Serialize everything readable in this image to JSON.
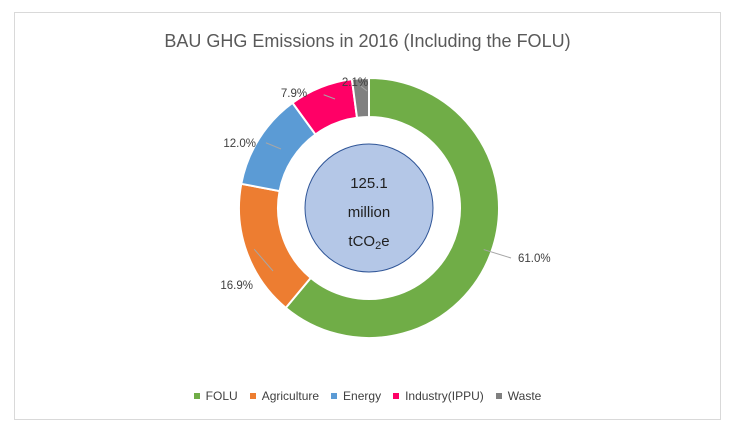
{
  "chart_data": {
    "type": "pie",
    "variant": "donut",
    "title": "BAU GHG Emissions in 2016 (Including the FOLU)",
    "center_label": {
      "value": "125.1",
      "unit_line1": "million",
      "unit_prefix": "tCO",
      "unit_sub": "2",
      "unit_suffix": "e"
    },
    "slices": [
      {
        "name": "FOLU",
        "value": 61.0,
        "label": "61.0%",
        "color": "#70ad47"
      },
      {
        "name": "Agriculture",
        "value": 16.9,
        "label": "16.9%",
        "color": "#ed7d31"
      },
      {
        "name": "Energy",
        "value": 12.0,
        "label": "12.0%",
        "color": "#5b9bd5"
      },
      {
        "name": "Industry(IPPU)",
        "value": 7.9,
        "label": "7.9%",
        "color": "#ff0066"
      },
      {
        "name": "Waste",
        "value": 2.1,
        "label": "2.1%",
        "color": "#808080"
      }
    ],
    "legend_position": "bottom"
  }
}
